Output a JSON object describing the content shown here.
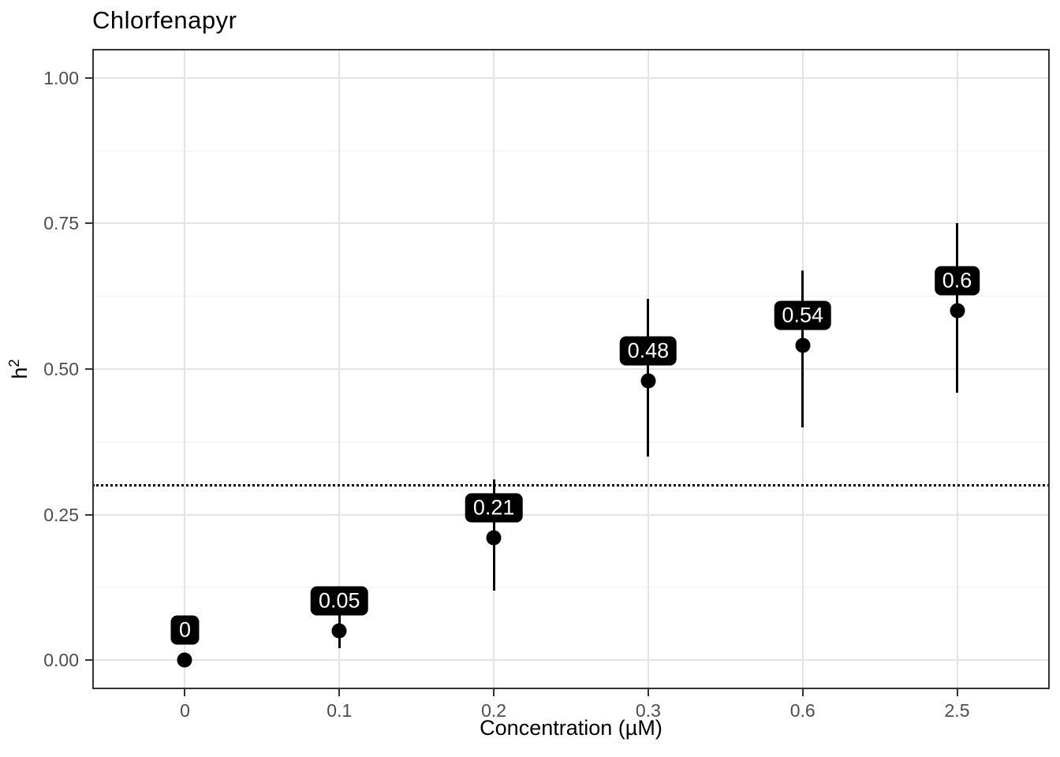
{
  "title": "Chlorfenapyr",
  "chart_data": {
    "type": "scatter",
    "subtype": "pointrange-with-labels",
    "title": "Chlorfenapyr",
    "xlabel": "Concentration (µM)",
    "ylabel": "h²",
    "ylabel_base": "h",
    "ylabel_sup": "2",
    "categories": [
      "0",
      "0.1",
      "0.2",
      "0.3",
      "0.6",
      "2.5"
    ],
    "values": [
      0,
      0.05,
      0.21,
      0.48,
      0.54,
      0.6
    ],
    "ci_low": [
      0,
      0.02,
      0.12,
      0.35,
      0.4,
      0.46
    ],
    "ci_high": [
      0,
      0.09,
      0.31,
      0.62,
      0.67,
      0.75
    ],
    "point_labels": [
      "0",
      "0.05",
      "0.21",
      "0.48",
      "0.54",
      "0.6"
    ],
    "reference_line_y": 0.3,
    "reference_line_style": "dotted",
    "ylim": [
      -0.05,
      1.05
    ],
    "yticks": {
      "values": [
        0,
        0.25,
        0.5,
        0.75,
        1.0
      ],
      "labels": [
        "0.00",
        "0.25",
        "0.50",
        "0.75",
        "1.00"
      ]
    },
    "y_minor_gridlines": [
      0.125,
      0.375,
      0.625,
      0.875
    ],
    "grid": "major+minor",
    "legend_position": "none",
    "colors": {
      "point": "#000000",
      "errorbar": "#000000",
      "label_bg": "#000000",
      "label_text": "#ffffff",
      "grid_major": "#e4e4e4",
      "grid_minor": "#efefef",
      "panel_border": "#333333",
      "axis_text": "#4d4d4d",
      "tick": "#333333",
      "reference_line": "#000000",
      "background": "#ffffff"
    }
  }
}
